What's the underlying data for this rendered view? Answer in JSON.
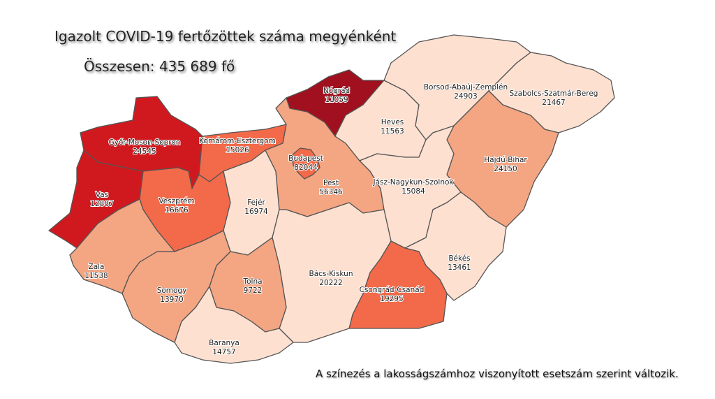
{
  "title": "Igazolt COVID-19 fertőzöttek száma megyénként",
  "total": "Összesen: 435 689 fő",
  "note": "A színezés a lakosságszámhoz viszonyított esetszám szerint változik.",
  "colors": {
    "level1": "#fde0d0",
    "level2": "#f4a582",
    "level3": "#f26a4a",
    "level4": "#d0191f",
    "level5": "#a0101e"
  },
  "counties": [
    {
      "id": "gyor",
      "name": "Győr-Moson-Sopron",
      "value": "24545",
      "level": "level4"
    },
    {
      "id": "vas",
      "name": "Vas",
      "value": "12887",
      "level": "level4"
    },
    {
      "id": "komarom",
      "name": "Komárom-Esztergom",
      "value": "15026",
      "level": "level3"
    },
    {
      "id": "veszprem",
      "name": "Veszprém",
      "value": "16676",
      "level": "level3"
    },
    {
      "id": "fejer",
      "name": "Fejér",
      "value": "16974",
      "level": "level1"
    },
    {
      "id": "nograd",
      "name": "Nógrád",
      "value": "11059",
      "level": "level5"
    },
    {
      "id": "pest",
      "name": "Pest",
      "value": "56346",
      "level": "level2"
    },
    {
      "id": "budapest",
      "name": "Budapest",
      "value": "82044",
      "level": "level3"
    },
    {
      "id": "heves",
      "name": "Heves",
      "value": "11563",
      "level": "level1"
    },
    {
      "id": "borsod",
      "name": "Borsod-Abaúj-Zemplén",
      "value": "24903",
      "level": "level1"
    },
    {
      "id": "szabolcs",
      "name": "Szabolcs-Szatmár-Bereg",
      "value": "21467",
      "level": "level1"
    },
    {
      "id": "hajdu",
      "name": "Hajdú-Bihar",
      "value": "24150",
      "level": "level2"
    },
    {
      "id": "jasz",
      "name": "Jász-Nagykun-Szolnok",
      "value": "15084",
      "level": "level1"
    },
    {
      "id": "bekes",
      "name": "Békés",
      "value": "13461",
      "level": "level1"
    },
    {
      "id": "csongrad",
      "name": "Csongrád-Csanád",
      "value": "19295",
      "level": "level3"
    },
    {
      "id": "bacs",
      "name": "Bács-Kiskun",
      "value": "20222",
      "level": "level1"
    },
    {
      "id": "tolna",
      "name": "Tolna",
      "value": "9722",
      "level": "level2"
    },
    {
      "id": "baranya",
      "name": "Baranya",
      "value": "14757",
      "level": "level1"
    },
    {
      "id": "somogy",
      "name": "Somogy",
      "value": "13970",
      "level": "level2"
    },
    {
      "id": "zala",
      "name": "Zala",
      "value": "11538",
      "level": "level2"
    }
  ]
}
